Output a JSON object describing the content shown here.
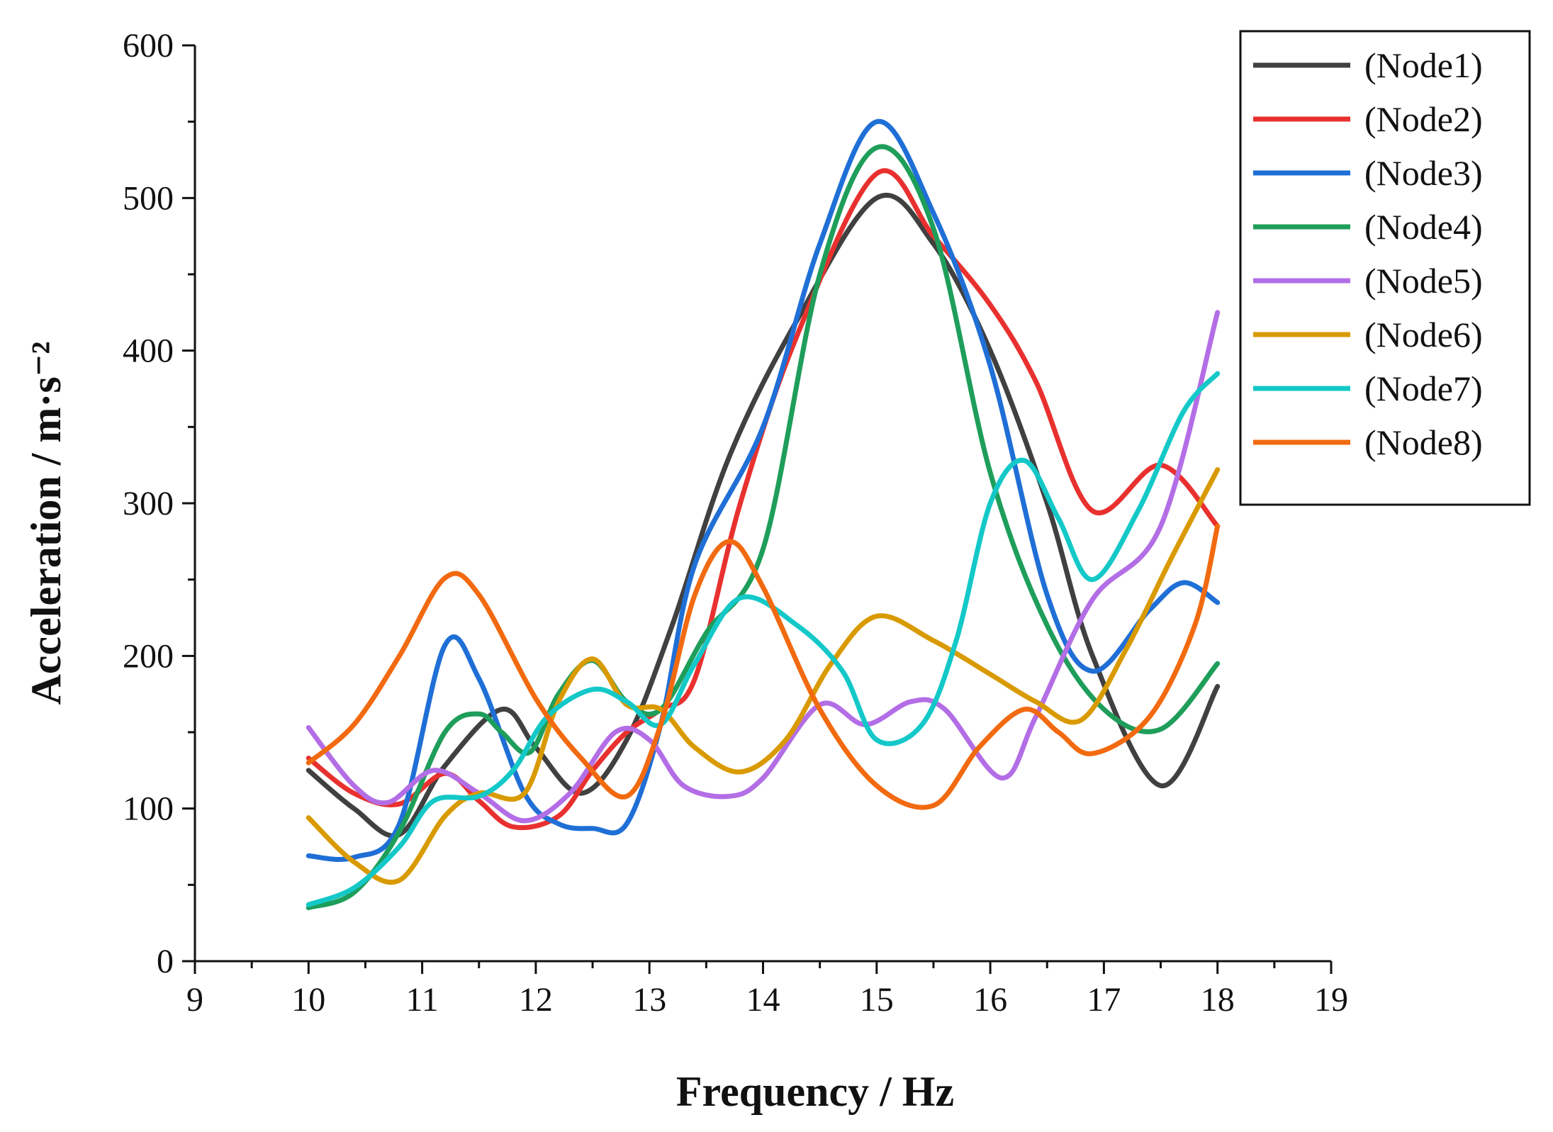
{
  "chart_data": {
    "type": "line",
    "title": "",
    "xlabel": "Frequency / Hz",
    "ylabel": "Acceleration / m·s⁻²",
    "xlim": [
      9,
      19
    ],
    "ylim": [
      0,
      600
    ],
    "xticks": [
      9,
      10,
      11,
      12,
      13,
      14,
      15,
      16,
      17,
      18,
      19
    ],
    "yticks": [
      0,
      100,
      200,
      300,
      400,
      500,
      600
    ],
    "xtick_labels": [
      "9",
      "10",
      "11",
      "12",
      "13",
      "14",
      "15",
      "16",
      "17",
      "18",
      "19"
    ],
    "ytick_labels": [
      "0",
      "100",
      "200",
      "300",
      "400",
      "500",
      "600"
    ],
    "grid": false,
    "legend_position": "top-right",
    "series": [
      {
        "name": "(Node1)",
        "color": "#404040",
        "x": [
          10,
          10.4,
          10.8,
          11.2,
          11.7,
          12.0,
          12.4,
          12.8,
          13.2,
          13.7,
          14.3,
          15.0,
          15.5,
          16.0,
          16.5,
          16.9,
          17.5,
          18.0
        ],
        "y": [
          125,
          100,
          83,
          128,
          165,
          140,
          110,
          145,
          220,
          330,
          420,
          500,
          470,
          400,
          300,
          200,
          115,
          180
        ]
      },
      {
        "name": "(Node2)",
        "color": "#e8312f",
        "x": [
          10,
          10.4,
          10.8,
          11.2,
          11.5,
          11.8,
          12.2,
          12.5,
          12.8,
          13.1,
          13.4,
          13.8,
          14.3,
          15.0,
          15.5,
          16.0,
          16.4,
          16.9,
          17.5,
          18.0
        ],
        "y": [
          133,
          110,
          103,
          123,
          105,
          88,
          95,
          125,
          150,
          165,
          185,
          300,
          410,
          516,
          475,
          430,
          380,
          295,
          325,
          285
        ]
      },
      {
        "name": "(Node3)",
        "color": "#1f6fd6",
        "x": [
          10,
          10.4,
          10.8,
          11.2,
          11.5,
          11.9,
          12.2,
          12.5,
          12.8,
          13.1,
          13.4,
          14.0,
          14.5,
          15.0,
          15.5,
          16.0,
          16.5,
          16.9,
          17.4,
          17.7,
          18.0
        ],
        "y": [
          69,
          68,
          90,
          207,
          185,
          110,
          90,
          87,
          90,
          155,
          260,
          350,
          470,
          550,
          490,
          390,
          240,
          190,
          230,
          248,
          235
        ]
      },
      {
        "name": "(Node4)",
        "color": "#1e9e5a",
        "x": [
          10,
          10.4,
          10.8,
          11.2,
          11.5,
          11.7,
          11.95,
          12.2,
          12.5,
          12.8,
          13.1,
          13.5,
          14.0,
          14.5,
          15.0,
          15.5,
          16.0,
          16.5,
          17.0,
          17.5,
          18.0
        ],
        "y": [
          35,
          45,
          85,
          150,
          162,
          150,
          137,
          175,
          197,
          170,
          165,
          215,
          270,
          450,
          533,
          480,
          320,
          220,
          165,
          152,
          195
        ]
      },
      {
        "name": "(Node5)",
        "color": "#b36ee6",
        "x": [
          10,
          10.4,
          10.7,
          11.1,
          11.5,
          11.9,
          12.3,
          12.7,
          13.0,
          13.3,
          13.7,
          14.0,
          14.5,
          14.9,
          15.3,
          15.6,
          16.1,
          16.4,
          16.9,
          17.5,
          18.0
        ],
        "y": [
          153,
          115,
          104,
          125,
          110,
          92,
          110,
          150,
          145,
          115,
          108,
          120,
          168,
          155,
          170,
          165,
          120,
          160,
          237,
          285,
          425
        ]
      },
      {
        "name": "(Node6)",
        "color": "#d99a00",
        "x": [
          10,
          10.4,
          10.8,
          11.2,
          11.5,
          11.9,
          12.2,
          12.5,
          12.8,
          13.1,
          13.4,
          13.8,
          14.2,
          14.6,
          15.0,
          15.5,
          16.0,
          16.4,
          16.8,
          17.2,
          17.6,
          18.0
        ],
        "y": [
          94,
          65,
          53,
          95,
          110,
          110,
          170,
          198,
          168,
          165,
          140,
          124,
          145,
          195,
          226,
          210,
          188,
          170,
          158,
          205,
          265,
          322
        ]
      },
      {
        "name": "(Node7)",
        "color": "#14c8c8",
        "x": [
          10,
          10.4,
          10.8,
          11.1,
          11.5,
          11.8,
          12.1,
          12.5,
          12.8,
          13.1,
          13.4,
          13.8,
          14.3,
          14.7,
          15.0,
          15.4,
          15.7,
          16.0,
          16.3,
          16.6,
          16.9,
          17.3,
          17.7,
          18.0
        ],
        "y": [
          37,
          48,
          75,
          105,
          108,
          125,
          160,
          178,
          170,
          155,
          195,
          238,
          220,
          190,
          145,
          155,
          210,
          300,
          328,
          290,
          250,
          295,
          360,
          385
        ]
      },
      {
        "name": "(Node8)",
        "color": "#f26a10",
        "x": [
          10,
          10.4,
          10.8,
          11.2,
          11.5,
          12.0,
          12.4,
          12.8,
          13.1,
          13.4,
          13.7,
          14.0,
          14.5,
          15.0,
          15.5,
          15.9,
          16.3,
          16.6,
          16.9,
          17.4,
          17.8,
          18.0
        ],
        "y": [
          130,
          155,
          200,
          251,
          240,
          172,
          133,
          108,
          155,
          240,
          275,
          245,
          165,
          115,
          102,
          140,
          165,
          150,
          136,
          160,
          220,
          285
        ]
      }
    ]
  }
}
